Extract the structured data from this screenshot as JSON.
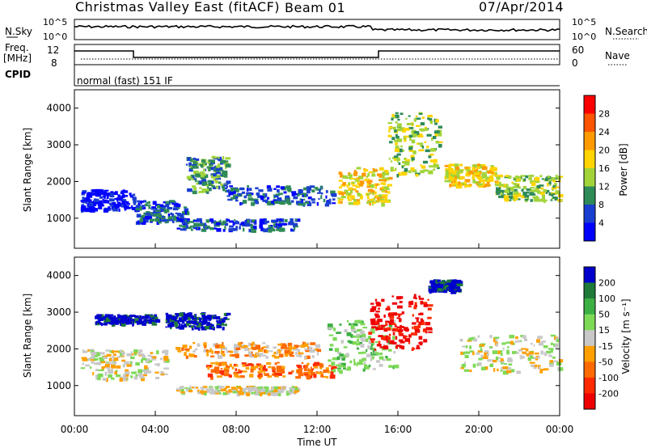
{
  "header": {
    "station": "Christmas Valley East (fitACF)",
    "beam": "Beam 01",
    "date": "07/Apr/2014"
  },
  "upper_labels": {
    "nsky": "N.Sky",
    "nsky_ticks": [
      "10^5",
      "10^0"
    ],
    "nsearch": "N.Search",
    "nsearch_ticks": [
      "10^5",
      "10^0"
    ],
    "freq": "Freq.",
    "freq_unit": "[MHz]",
    "freq_ticks": [
      "12",
      "8"
    ],
    "nave": "Nave",
    "nave_ticks": [
      "60",
      "0"
    ],
    "cpid": "CPID",
    "cpid_value": "normal (fast) 151 IF"
  },
  "chart_data": [
    {
      "type": "heatmap",
      "name": "power",
      "ylabel": "Slant Range [km]",
      "yticks": [
        1000,
        2000,
        3000,
        4000
      ],
      "ylim": [
        180,
        4500
      ],
      "xlim": [
        0,
        24
      ],
      "colorbar": {
        "label": "Power [dB]",
        "ticks": [
          "28",
          "24",
          "20",
          "16",
          "12",
          "8",
          "4"
        ],
        "colors": [
          "#ff0000",
          "#ff5500",
          "#ff9a00",
          "#ffd400",
          "#a2d43a",
          "#2e8b57",
          "#1a3fd0",
          "#0000ff"
        ]
      },
      "structures": [
        {
          "t0": 0.3,
          "t1": 3.0,
          "r0": 1250,
          "r1": 1800,
          "level": 7
        },
        {
          "t0": 3.0,
          "t1": 5.5,
          "r0": 900,
          "r1": 1500,
          "level": 6
        },
        {
          "t0": 5.5,
          "t1": 7.5,
          "r0": 1700,
          "r1": 2700,
          "level": 5
        },
        {
          "t0": 5.0,
          "t1": 11.0,
          "r0": 700,
          "r1": 1000,
          "level": 6
        },
        {
          "t0": 7.5,
          "t1": 12.8,
          "r0": 1400,
          "r1": 1900,
          "level": 6
        },
        {
          "t0": 13.0,
          "t1": 15.5,
          "r0": 1400,
          "r1": 2400,
          "level": 3
        },
        {
          "t0": 15.5,
          "t1": 18.0,
          "r0": 2200,
          "r1": 3900,
          "level": 4
        },
        {
          "t0": 18.3,
          "t1": 20.8,
          "r0": 1900,
          "r1": 2500,
          "level": 3
        },
        {
          "t0": 20.8,
          "t1": 24.0,
          "r0": 1500,
          "r1": 2200,
          "level": 4
        }
      ]
    },
    {
      "type": "heatmap",
      "name": "velocity",
      "ylabel": "Slant Range [km]",
      "yticks": [
        1000,
        2000,
        3000,
        4000
      ],
      "ylim": [
        180,
        4500
      ],
      "xlim": [
        0,
        24
      ],
      "colorbar": {
        "label": "Velocity [m s⁻¹]",
        "ticks": [
          "200",
          "100",
          "50",
          "15",
          "-15",
          "-50",
          "-100",
          "-200"
        ],
        "colors": [
          "#0000cc",
          "#1f7a3a",
          "#3cb043",
          "#7ed957",
          "#c8c8c8",
          "#ffa000",
          "#ff6a00",
          "#ff2a00",
          "#ee0000"
        ]
      },
      "structures": [
        {
          "t0": 0.3,
          "t1": 4.5,
          "r0": 1200,
          "r1": 2000,
          "level": 4
        },
        {
          "t0": 1.0,
          "t1": 4.0,
          "r0": 2700,
          "r1": 2950,
          "level": 0
        },
        {
          "t0": 4.5,
          "t1": 7.5,
          "r0": 2600,
          "r1": 3000,
          "level": 0
        },
        {
          "t0": 5.0,
          "t1": 12.0,
          "r0": 1800,
          "r1": 2200,
          "level": 5
        },
        {
          "t0": 6.5,
          "t1": 12.8,
          "r0": 1250,
          "r1": 1650,
          "level": 6
        },
        {
          "t0": 5.0,
          "t1": 11.0,
          "r0": 800,
          "r1": 1000,
          "level": 4
        },
        {
          "t0": 12.5,
          "t1": 16.0,
          "r0": 1400,
          "r1": 2800,
          "level": 3
        },
        {
          "t0": 14.5,
          "t1": 17.5,
          "r0": 2000,
          "r1": 3500,
          "level": 8
        },
        {
          "t0": 17.5,
          "t1": 19.0,
          "r0": 3600,
          "r1": 3900,
          "level": 0
        },
        {
          "t0": 19.0,
          "t1": 24.0,
          "r0": 1400,
          "r1": 2400,
          "level": 4
        }
      ]
    }
  ],
  "time_axis": {
    "ticks": [
      "00:00",
      "04:00",
      "08:00",
      "12:00",
      "16:00",
      "20:00",
      "00:00"
    ],
    "label": "Time UT"
  }
}
